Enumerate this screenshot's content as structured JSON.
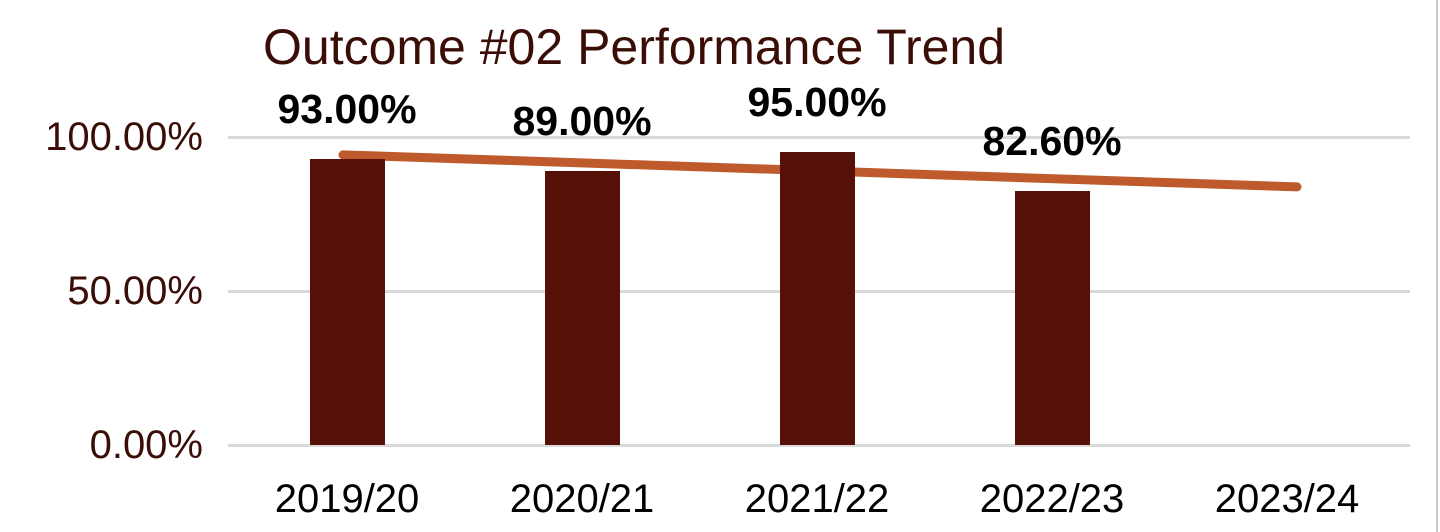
{
  "chart_data": {
    "type": "bar",
    "title": "Outcome #02 Performance Trend",
    "categories": [
      "2019/20",
      "2020/21",
      "2021/22",
      "2022/23",
      "2023/24"
    ],
    "series": [
      {
        "name": "Outcome #02",
        "values": [
          93.0,
          89.0,
          95.0,
          82.6,
          null
        ],
        "data_labels": [
          "93.00%",
          "89.00%",
          "95.00%",
          "82.60%",
          ""
        ]
      }
    ],
    "trendline": {
      "start_category_index": 0,
      "start_value": 94.2,
      "end_category_index": 4,
      "end_value": 83.8
    },
    "y_ticks": [
      {
        "label": "100.00%",
        "value": 100
      },
      {
        "label": "50.00%",
        "value": 50
      },
      {
        "label": "0.00%",
        "value": 0
      }
    ],
    "ylim": [
      0,
      100
    ],
    "xlabel": "",
    "ylabel": "",
    "grid": true,
    "legend_position": "none",
    "colors": {
      "bar": "#551008",
      "trendline": "#BE5A2C",
      "title_text": "#3B0D07",
      "y_tick_text": "#3B0D07",
      "x_tick_text": "#000000",
      "data_label_text": "#000000",
      "gridline": "#D9D9D9",
      "window_edge": "#CCCCCC"
    }
  }
}
